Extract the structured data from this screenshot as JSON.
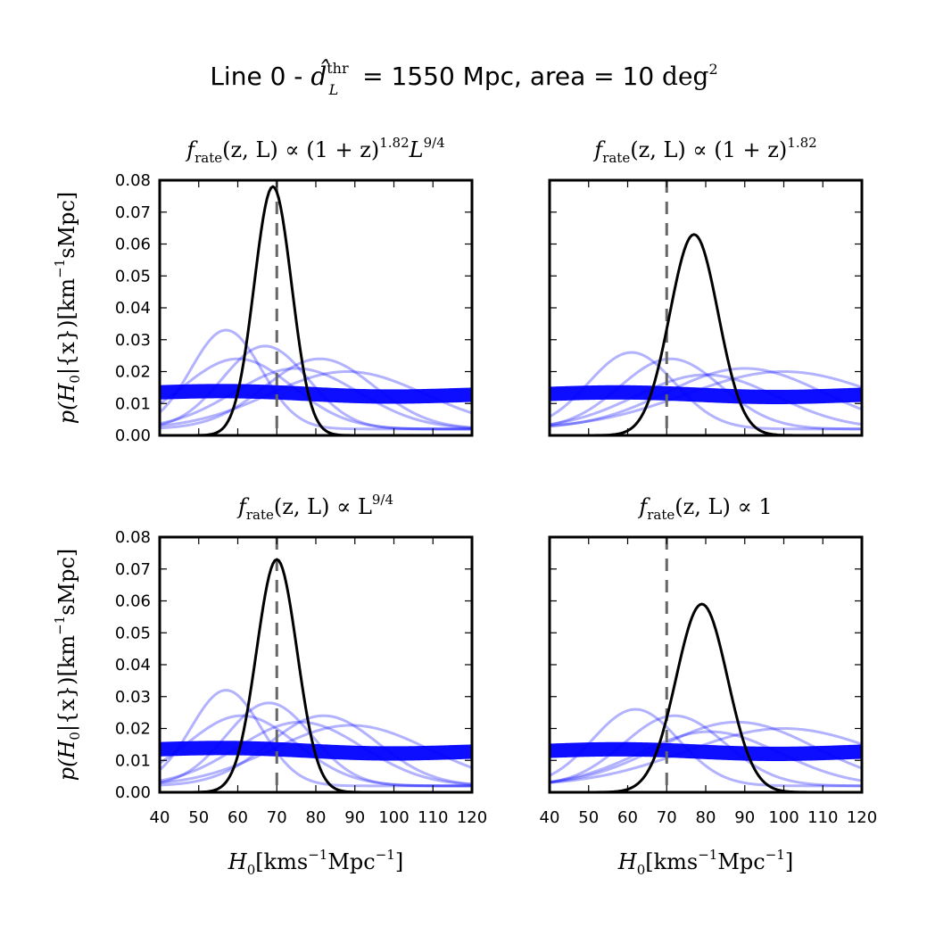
{
  "figure": {
    "title_prefix": "Line 0 - ",
    "title_dl": "d̂",
    "title_dl_sup": "thr",
    "title_dl_sub": "L",
    "title_mid": " = 1550 Mpc, area = 10 ",
    "title_unit": "deg",
    "title_unit_sup": "2"
  },
  "colors": {
    "combined": "#000000",
    "individual": "#0000ff",
    "reference": "#666666"
  },
  "chart_data": [
    {
      "type": "line",
      "title_parts": [
        "f",
        "rate",
        "(z, L) ∝ (1 + z)",
        "1.82",
        "L",
        "9/4"
      ],
      "xlabel_parts": [
        "H",
        "0",
        "[kms",
        "−1",
        "Mpc",
        "−1",
        "]"
      ],
      "ylabel_parts": [
        "p(H",
        "0",
        "|{x})[km",
        "−1",
        "sMpc]"
      ],
      "xlim": [
        40,
        120
      ],
      "ylim": [
        0,
        0.08
      ],
      "xticks": [
        "40",
        "50",
        "60",
        "70",
        "80",
        "90",
        "100",
        "110",
        "120"
      ],
      "yticks": [
        "0.00",
        "0.01",
        "0.02",
        "0.03",
        "0.04",
        "0.05",
        "0.06",
        "0.07",
        "0.08"
      ],
      "show_xticklabels": false,
      "show_yticklabels": true,
      "reference_x": 70,
      "combined": {
        "peak_x": 69,
        "peak_y": 0.078,
        "sigma": 4.8
      },
      "individual": [
        {
          "peak_x": 57,
          "peak_y": 0.031,
          "sigma": 9
        },
        {
          "peak_x": 67,
          "peak_y": 0.026,
          "sigma": 11
        },
        {
          "peak_x": 81,
          "peak_y": 0.022,
          "sigma": 14
        },
        {
          "peak_x": 88,
          "peak_y": 0.018,
          "sigma": 20
        },
        {
          "peak_x": 60,
          "peak_y": 0.022,
          "sigma": 14
        },
        {
          "peak_x": 75,
          "peak_y": 0.019,
          "sigma": 16
        }
      ],
      "band": {
        "left": 0.0135,
        "right": 0.0125,
        "thickness": 0.0045
      }
    },
    {
      "type": "line",
      "title_parts": [
        "f",
        "rate",
        "(z, L) ∝ (1 + z)",
        "1.82",
        "",
        ""
      ],
      "xlabel_parts": [
        "H",
        "0",
        "[kms",
        "−1",
        "Mpc",
        "−1",
        "]"
      ],
      "ylabel_parts": [
        "",
        "",
        "",
        "",
        ""
      ],
      "xlim": [
        40,
        120
      ],
      "ylim": [
        0,
        0.08
      ],
      "xticks": [
        "40",
        "50",
        "60",
        "70",
        "80",
        "90",
        "100",
        "110",
        "120"
      ],
      "yticks": [
        "0.00",
        "0.01",
        "0.02",
        "0.03",
        "0.04",
        "0.05",
        "0.06",
        "0.07",
        "0.08"
      ],
      "show_xticklabels": false,
      "show_yticklabels": false,
      "reference_x": 70,
      "combined": {
        "peak_x": 77,
        "peak_y": 0.063,
        "sigma": 6.2
      },
      "individual": [
        {
          "peak_x": 61,
          "peak_y": 0.024,
          "sigma": 11
        },
        {
          "peak_x": 71,
          "peak_y": 0.022,
          "sigma": 13
        },
        {
          "peak_x": 90,
          "peak_y": 0.019,
          "sigma": 20
        },
        {
          "peak_x": 100,
          "peak_y": 0.018,
          "sigma": 25
        },
        {
          "peak_x": 80,
          "peak_y": 0.017,
          "sigma": 18
        }
      ],
      "band": {
        "left": 0.013,
        "right": 0.0125,
        "thickness": 0.0045
      }
    },
    {
      "type": "line",
      "title_parts": [
        "f",
        "rate",
        "(z, L) ∝ L",
        "9/4",
        "",
        ""
      ],
      "xlabel_parts": [
        "H",
        "0",
        "[kms",
        "−1",
        "Mpc",
        "−1",
        "]"
      ],
      "ylabel_parts": [
        "p(H",
        "0",
        "|{x})[km",
        "−1",
        "sMpc]"
      ],
      "xlim": [
        40,
        120
      ],
      "ylim": [
        0,
        0.08
      ],
      "xticks": [
        "40",
        "50",
        "60",
        "70",
        "80",
        "90",
        "100",
        "110",
        "120"
      ],
      "yticks": [
        "0.00",
        "0.01",
        "0.02",
        "0.03",
        "0.04",
        "0.05",
        "0.06",
        "0.07",
        "0.08"
      ],
      "show_xticklabels": true,
      "show_yticklabels": true,
      "reference_x": 70,
      "combined": {
        "peak_x": 70,
        "peak_y": 0.073,
        "sigma": 5.2
      },
      "individual": [
        {
          "peak_x": 57,
          "peak_y": 0.03,
          "sigma": 9
        },
        {
          "peak_x": 68,
          "peak_y": 0.026,
          "sigma": 11
        },
        {
          "peak_x": 82,
          "peak_y": 0.022,
          "sigma": 14
        },
        {
          "peak_x": 89,
          "peak_y": 0.019,
          "sigma": 20
        },
        {
          "peak_x": 61,
          "peak_y": 0.022,
          "sigma": 14
        },
        {
          "peak_x": 76,
          "peak_y": 0.02,
          "sigma": 16
        }
      ],
      "band": {
        "left": 0.0135,
        "right": 0.0125,
        "thickness": 0.0045
      }
    },
    {
      "type": "line",
      "title_parts": [
        "f",
        "rate",
        "(z, L) ∝ 1",
        "",
        "",
        ""
      ],
      "xlabel_parts": [
        "H",
        "0",
        "[kms",
        "−1",
        "Mpc",
        "−1",
        "]"
      ],
      "ylabel_parts": [
        "",
        "",
        "",
        "",
        ""
      ],
      "xlim": [
        40,
        120
      ],
      "ylim": [
        0,
        0.08
      ],
      "xticks": [
        "40",
        "50",
        "60",
        "70",
        "80",
        "90",
        "100",
        "110",
        "120"
      ],
      "yticks": [
        "0.00",
        "0.01",
        "0.02",
        "0.03",
        "0.04",
        "0.05",
        "0.06",
        "0.07",
        "0.08"
      ],
      "show_xticklabels": true,
      "show_yticklabels": false,
      "reference_x": 70,
      "combined": {
        "peak_x": 79,
        "peak_y": 0.059,
        "sigma": 6.6
      },
      "individual": [
        {
          "peak_x": 62,
          "peak_y": 0.024,
          "sigma": 11
        },
        {
          "peak_x": 72,
          "peak_y": 0.022,
          "sigma": 13
        },
        {
          "peak_x": 88,
          "peak_y": 0.02,
          "sigma": 20
        },
        {
          "peak_x": 100,
          "peak_y": 0.018,
          "sigma": 25
        },
        {
          "peak_x": 81,
          "peak_y": 0.017,
          "sigma": 18
        }
      ],
      "band": {
        "left": 0.013,
        "right": 0.0125,
        "thickness": 0.0045
      }
    }
  ]
}
